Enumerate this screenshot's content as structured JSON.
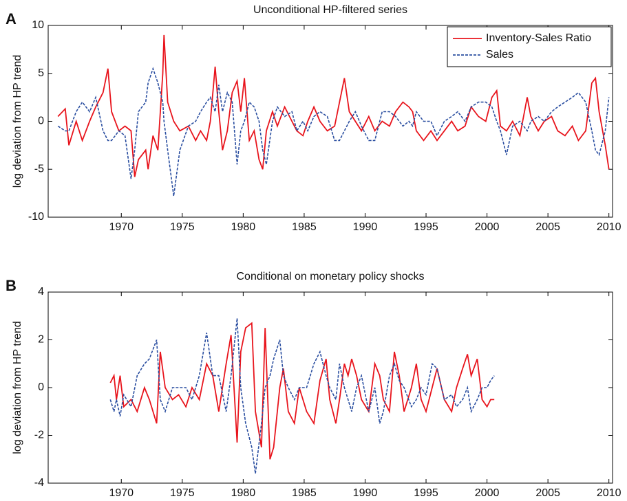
{
  "chart_data": [
    {
      "type": "line",
      "label": "A",
      "title": "Unconditional HP-filtered series",
      "y_label": "log deviation from HP trend",
      "legend": "upper right",
      "x": [
        1964.8,
        1965.4,
        1965.7,
        1966.3,
        1966.8,
        1967.4,
        1967.9,
        1968.5,
        1968.9,
        1969.2,
        1969.8,
        1970.3,
        1970.8,
        1971.1,
        1971.4,
        1972.0,
        1972.2,
        1972.6,
        1973.0,
        1973.4,
        1973.5,
        1973.8,
        1974.3,
        1974.8,
        1975.5,
        1976.1,
        1976.5,
        1977.0,
        1977.3,
        1977.7,
        1978.0,
        1978.3,
        1978.7,
        1979.1,
        1979.5,
        1979.8,
        1980.1,
        1980.5,
        1980.9,
        1981.3,
        1981.6,
        1981.9,
        1982.4,
        1982.8,
        1983.4,
        1984.0,
        1984.4,
        1984.9,
        1985.3,
        1985.8,
        1986.3,
        1986.9,
        1987.5,
        1987.9,
        1988.3,
        1988.7,
        1989.2,
        1989.7,
        1990.3,
        1990.8,
        1991.4,
        1992.0,
        1992.5,
        1993.1,
        1993.6,
        1993.9,
        1994.2,
        1994.8,
        1995.4,
        1995.9,
        1996.5,
        1997.1,
        1997.6,
        1998.2,
        1998.7,
        1999.3,
        1999.9,
        2000.4,
        2000.8,
        2001.1,
        2001.6,
        2002.1,
        2002.7,
        2003.3,
        2003.6,
        2004.2,
        2004.7,
        2005.3,
        2005.8,
        2006.4,
        2007.0,
        2007.5,
        2008.1,
        2008.6,
        2008.9,
        2009.2,
        2009.7,
        2010.0
      ],
      "series": [
        {
          "name": "Inventory-Sales Ratio",
          "color": "#e8141c",
          "style": "solid",
          "values": [
            0.5,
            1.3,
            -2.5,
            0,
            -2,
            0,
            1.5,
            3,
            5.5,
            1,
            -1,
            -0.5,
            -1,
            -5.8,
            -4,
            -3,
            -5,
            -1.5,
            -3,
            5,
            9,
            2,
            0,
            -1,
            -0.5,
            -2,
            -1,
            -2,
            0,
            5.7,
            1,
            -3,
            -1,
            3,
            4.2,
            1,
            4.5,
            -2,
            -1,
            -4,
            -5,
            -1,
            1,
            -0.5,
            1.5,
            0,
            -1,
            -1.5,
            0,
            1.5,
            0,
            -1,
            -0.5,
            2,
            4.5,
            1,
            0,
            -1,
            0.5,
            -1,
            0,
            -0.5,
            1,
            2,
            1.5,
            1,
            -1,
            -2,
            -1,
            -2,
            -1,
            0,
            -1,
            -0.5,
            1.5,
            0.5,
            0,
            2.5,
            3.2,
            -0.5,
            -1,
            0,
            -1.5,
            2.5,
            0.5,
            -1,
            0,
            0.5,
            -1,
            -1.5,
            -0.5,
            -2,
            -1,
            4,
            4.5,
            1,
            -2.5,
            -5
          ]
        },
        {
          "name": "Sales",
          "color": "#2a4ea0",
          "style": "dashed",
          "values": [
            -0.5,
            -1,
            -1,
            1,
            2,
            1,
            2.5,
            -1,
            -2,
            -2,
            -1,
            -1.5,
            -6,
            -3,
            1,
            2,
            4,
            5.5,
            4,
            2,
            0,
            -3,
            -7.8,
            -3,
            -0.5,
            0,
            1,
            2,
            2.5,
            1,
            3.8,
            1,
            3,
            2,
            -4.5,
            -1,
            0,
            2,
            1.5,
            0,
            -3,
            -4.5,
            0,
            1.5,
            0.5,
            1,
            -1,
            0,
            -1,
            0.5,
            1,
            0.5,
            -2,
            -2,
            -1,
            0,
            1,
            -0.5,
            -2,
            -2,
            1,
            1,
            0.5,
            -0.5,
            0,
            -0.5,
            1,
            0,
            0,
            -1.5,
            0,
            0.5,
            1,
            0,
            1.5,
            2,
            2,
            1.5,
            0,
            -1,
            -3.5,
            -0.5,
            0,
            -1,
            0,
            0.5,
            0,
            1,
            1.5,
            2,
            2.5,
            3,
            2,
            -1,
            -3,
            -3.5,
            -1,
            2.5
          ]
        }
      ],
      "xlim": [
        1964,
        2010.3
      ],
      "ylim": [
        -10,
        10
      ],
      "xticks": [
        1970,
        1975,
        1980,
        1985,
        1990,
        1995,
        2000,
        2005,
        2010
      ],
      "yticks": [
        -10,
        -5,
        0,
        5,
        10
      ]
    },
    {
      "type": "line",
      "label": "B",
      "title": "Conditional on monetary policy shocks",
      "y_label": "log deviation from HP trend",
      "x": [
        1969.1,
        1969.4,
        1969.6,
        1969.9,
        1970.2,
        1970.8,
        1971.3,
        1971.9,
        1972.3,
        1972.9,
        1973.2,
        1973.6,
        1974.2,
        1974.7,
        1975.3,
        1975.8,
        1976.4,
        1977.0,
        1977.5,
        1978.0,
        1978.6,
        1979.0,
        1979.5,
        1979.8,
        1980.2,
        1980.7,
        1981.0,
        1981.5,
        1981.8,
        1982.2,
        1982.5,
        1983.0,
        1983.3,
        1983.7,
        1984.2,
        1984.6,
        1985.2,
        1985.8,
        1986.3,
        1986.8,
        1987.1,
        1987.6,
        1987.9,
        1988.3,
        1988.6,
        1988.9,
        1989.3,
        1989.7,
        1990.3,
        1990.8,
        1991.2,
        1991.5,
        1992.0,
        1992.4,
        1992.8,
        1993.2,
        1993.8,
        1994.2,
        1994.6,
        1995.0,
        1995.5,
        1995.9,
        1996.5,
        1997.1,
        1997.5,
        1998.0,
        1998.4,
        1998.7,
        1999.2,
        1999.6,
        2000.0,
        2000.3,
        2000.6
      ],
      "series": [
        {
          "color": "#e8141c",
          "style": "solid",
          "values": [
            0.2,
            0.5,
            -0.5,
            0.5,
            -0.8,
            -0.5,
            -1,
            0,
            -0.5,
            -1.5,
            1.5,
            0,
            -0.5,
            -0.3,
            -0.8,
            0,
            -0.5,
            1,
            0.5,
            -1,
            1,
            2.2,
            -2.3,
            1.5,
            2.5,
            2.7,
            -1,
            -2.5,
            2.5,
            -3,
            -2.5,
            0,
            0.8,
            -1,
            -1.5,
            0,
            -1,
            -1.5,
            0.3,
            1.2,
            -0.5,
            -1.5,
            -0.5,
            1,
            0.5,
            1.2,
            0.5,
            -0.5,
            -1,
            1,
            0.5,
            -0.5,
            -1,
            1.5,
            0.5,
            -1,
            0,
            1,
            -0.5,
            -1,
            0,
            0.8,
            -0.5,
            -1,
            0,
            0.8,
            1.4,
            0.5,
            1.2,
            -0.5,
            -0.8,
            -0.5,
            -0.5
          ]
        },
        {
          "color": "#2a4ea0",
          "style": "dashed",
          "values": [
            -0.5,
            -1,
            -0.5,
            -1.2,
            -0.3,
            -0.8,
            0.5,
            1,
            1.2,
            2,
            -0.5,
            -1,
            0,
            0,
            0,
            -0.5,
            0.5,
            2.3,
            0.5,
            0.5,
            -1,
            0.5,
            2.9,
            0,
            -1.5,
            -2.5,
            -3.6,
            -1.5,
            0,
            0.5,
            1.2,
            2,
            0.5,
            0,
            -0.5,
            0,
            0,
            1,
            1.5,
            0.5,
            0,
            -0.5,
            1,
            0,
            -0.5,
            -1,
            0,
            0.5,
            -1,
            0,
            -1.5,
            -1,
            0.5,
            1,
            0.3,
            0,
            -0.8,
            -0.5,
            0,
            -0.3,
            1,
            0.8,
            -0.5,
            -0.3,
            -0.8,
            -0.5,
            0,
            -1,
            -0.5,
            0,
            0,
            0.3,
            0.5
          ]
        }
      ],
      "xlim": [
        1964,
        2010.3
      ],
      "ylim": [
        -4,
        4
      ],
      "xticks": [
        1970,
        1975,
        1980,
        1985,
        1990,
        1995,
        2000,
        2005,
        2010
      ],
      "yticks": [
        -4,
        -2,
        0,
        2,
        4
      ]
    }
  ]
}
